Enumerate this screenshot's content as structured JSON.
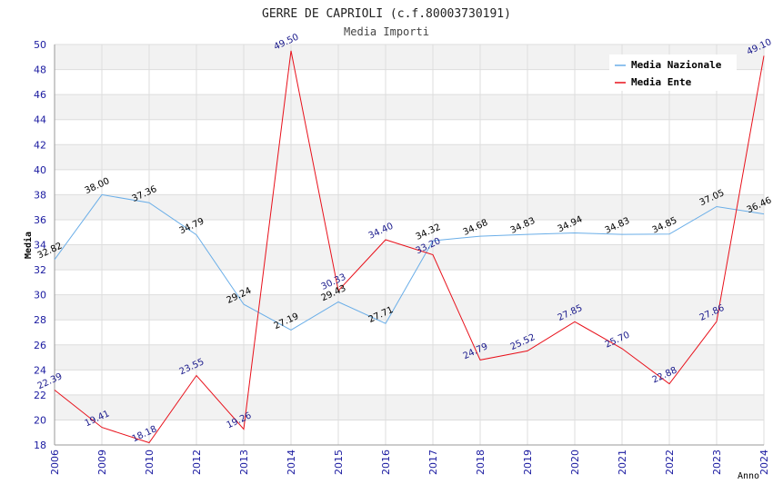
{
  "chart_data": {
    "type": "line",
    "title": "GERRE DE CAPRIOLI (c.f.80003730191)",
    "subtitle": "Media Importi",
    "xlabel": "Anno",
    "ylabel": "Media",
    "ylim": [
      18,
      50
    ],
    "yticks": [
      18,
      20,
      22,
      24,
      26,
      28,
      30,
      32,
      34,
      36,
      38,
      40,
      42,
      44,
      46,
      48,
      50
    ],
    "categories": [
      "2006",
      "2009",
      "2010",
      "2012",
      "2013",
      "2014",
      "2015",
      "2016",
      "2017",
      "2018",
      "2019",
      "2020",
      "2021",
      "2022",
      "2023",
      "2024"
    ],
    "grid": true,
    "legend_position": "top-right",
    "series": [
      {
        "name": "Media Nazionale",
        "color": "#6aaee8",
        "label_color": "#000000",
        "values": [
          32.82,
          38.0,
          37.36,
          34.79,
          29.24,
          27.19,
          29.43,
          27.71,
          34.32,
          34.68,
          34.83,
          34.94,
          34.83,
          34.85,
          37.05,
          36.46
        ],
        "labels": [
          "32.82",
          "38.00",
          "37.36",
          "34.79",
          "29.24",
          "27.19",
          "29.43",
          "27.71",
          "34.32",
          "34.68",
          "34.83",
          "34.94",
          "34.83",
          "34.85",
          "37.05",
          "36.46"
        ]
      },
      {
        "name": "Media Ente",
        "color": "#e8101a",
        "label_color": "#1a1a8c",
        "values": [
          22.39,
          19.41,
          18.18,
          23.55,
          19.26,
          49.5,
          30.33,
          34.4,
          33.2,
          24.79,
          25.52,
          27.85,
          25.7,
          22.88,
          27.86,
          49.1
        ],
        "labels": [
          "22.39",
          "19.41",
          "18.18",
          "23.55",
          "19.26",
          "49.50",
          "30.33",
          "34.40",
          "33.20",
          "24.79",
          "25.52",
          "27.85",
          "25.70",
          "22.88",
          "27.86",
          "49.10"
        ]
      }
    ]
  },
  "colors": {
    "tick_label": "#1a1aa0",
    "band": "#f2f2f2",
    "gridline": "#dddddd",
    "axis": "#999999",
    "title": "#222222",
    "subtitle": "#444444"
  }
}
